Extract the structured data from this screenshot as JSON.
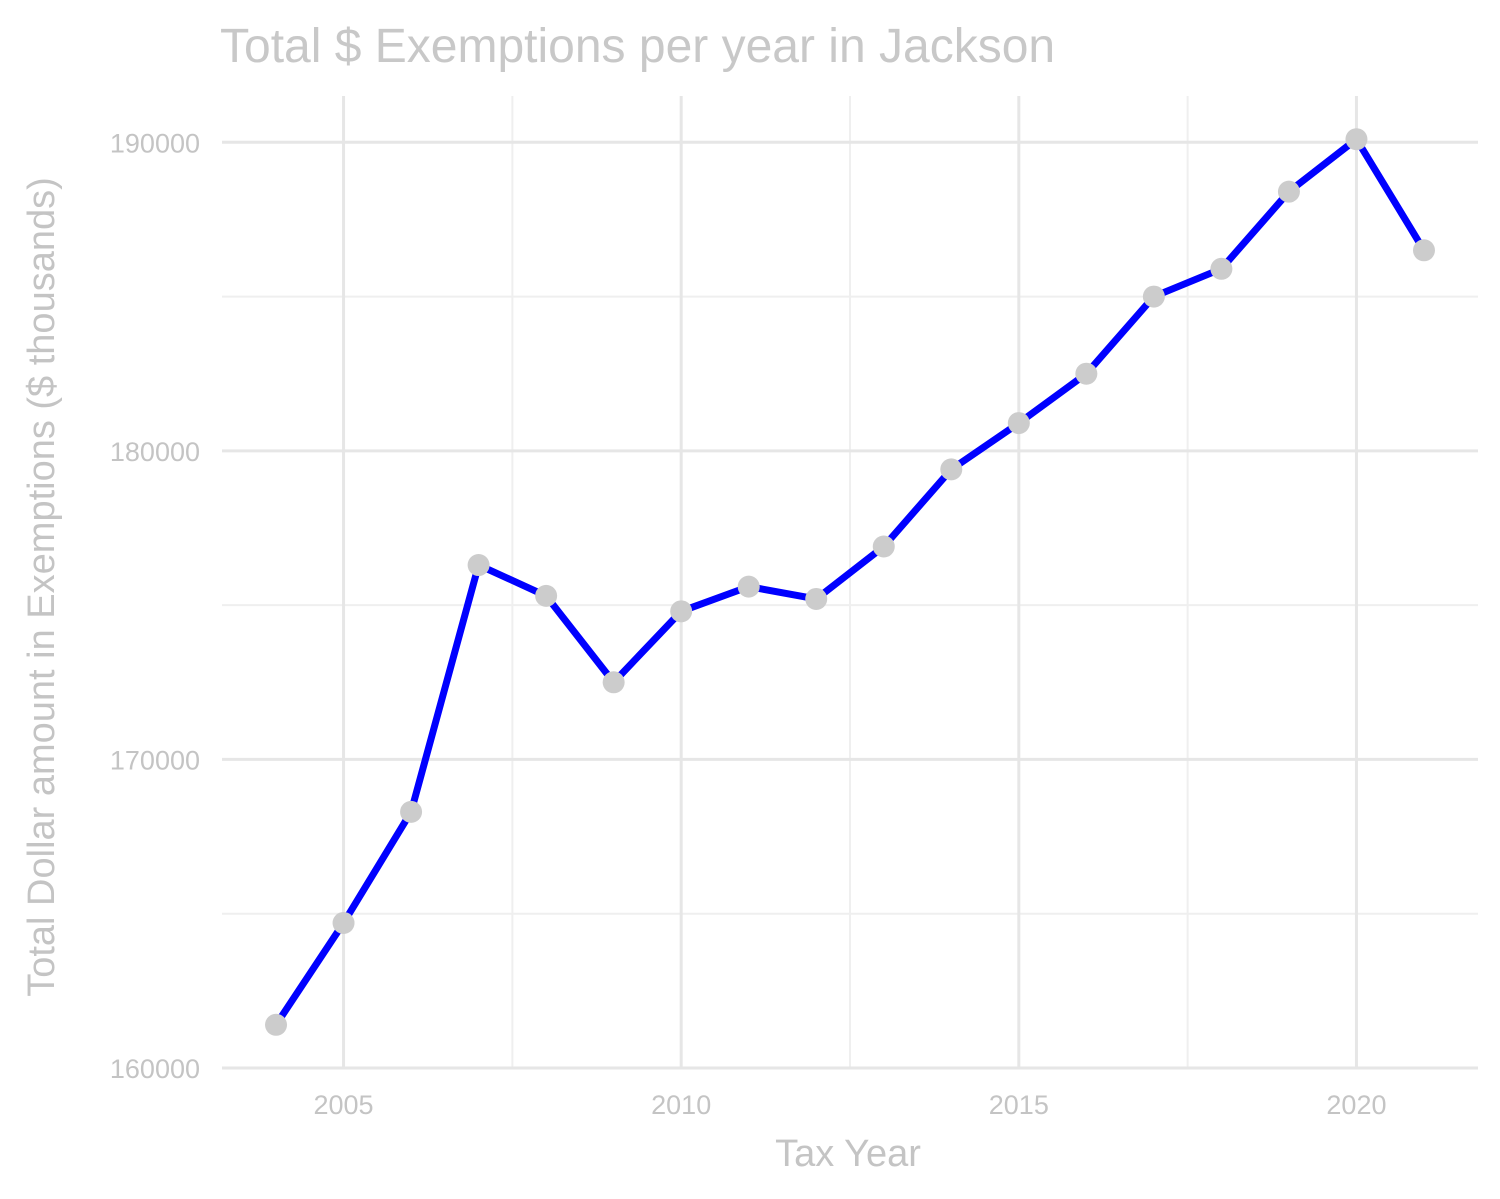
{
  "chart_data": {
    "type": "line",
    "title": "Total $ Exemptions per year in Jackson",
    "xlabel": "Tax Year",
    "ylabel": "Total Dollar amount in Exemptions ($ thousands)",
    "x": [
      2004,
      2005,
      2006,
      2007,
      2008,
      2009,
      2010,
      2011,
      2012,
      2013,
      2014,
      2015,
      2016,
      2017,
      2018,
      2019,
      2020,
      2021
    ],
    "series": [
      {
        "values": [
          161400,
          164700,
          168300,
          176300,
          175300,
          172500,
          174800,
          175600,
          175200,
          176900,
          179400,
          180900,
          182500,
          185000,
          185900,
          188400,
          190100,
          186500
        ]
      }
    ],
    "xlim": [
      2003.2,
      2021.8
    ],
    "ylim": [
      160000,
      191500
    ],
    "x_ticks": [
      "2005",
      "2010",
      "2015",
      "2020"
    ],
    "y_ticks": [
      "160000",
      "170000",
      "180000",
      "190000"
    ],
    "grid": true,
    "line_color": "#0000ff",
    "point_color": "#cccccc"
  }
}
